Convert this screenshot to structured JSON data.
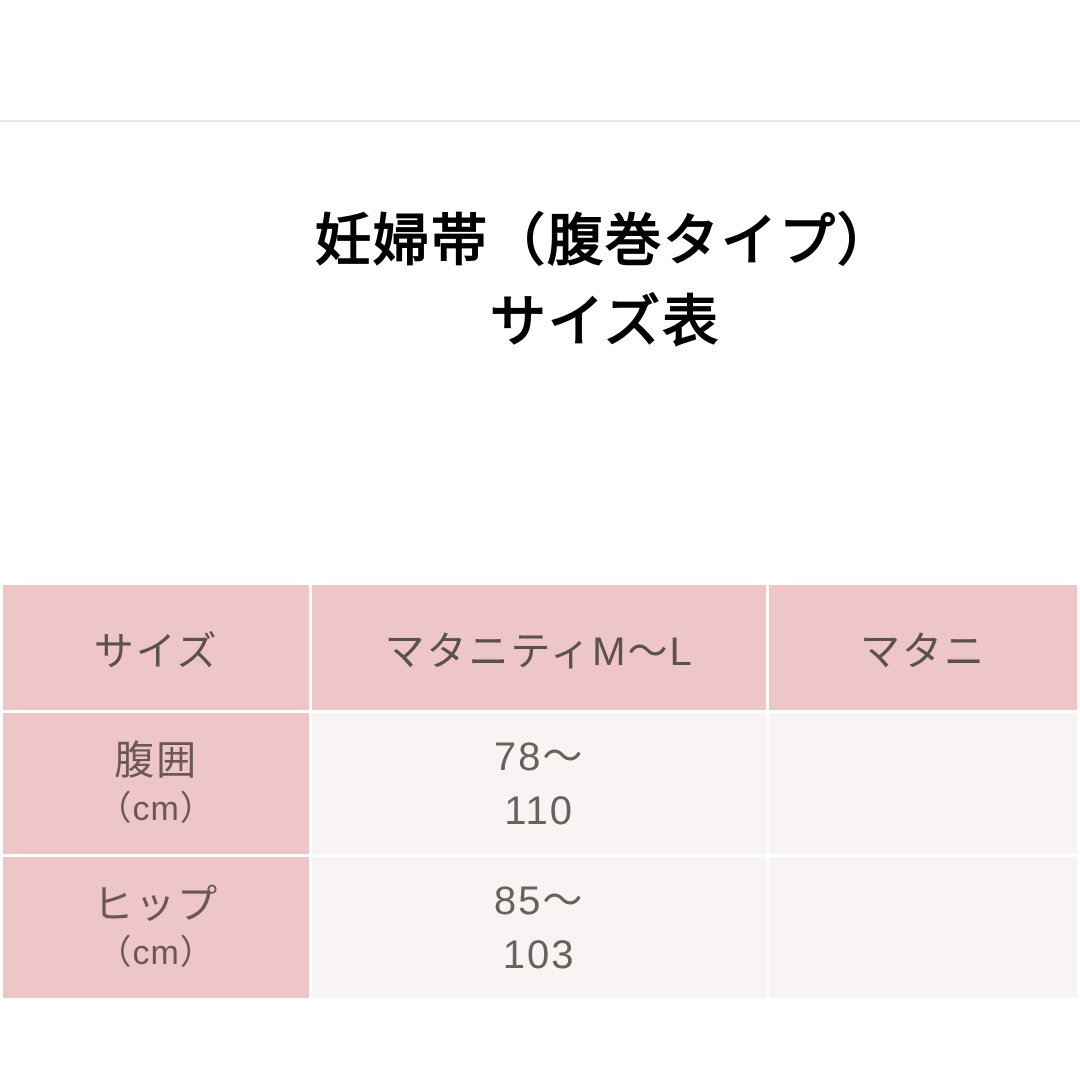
{
  "title": {
    "line1": "妊婦帯（腹巻タイプ）",
    "line2": "サイズ表"
  },
  "table": {
    "headers": [
      "サイズ",
      "マタニティM〜L",
      "マタニ"
    ],
    "rows": [
      {
        "label_main": "腹囲",
        "label_sub": "（cm）",
        "value_line1": "78〜",
        "value_line2": "110",
        "partial_value": ""
      },
      {
        "label_main": "ヒップ",
        "label_sub": "（cm）",
        "value_line1": "85〜",
        "value_line2": "103",
        "partial_value": ""
      }
    ],
    "colors": {
      "header_bg": "#eec6c8",
      "cell_bg": "#f8f4f3",
      "border": "#ffffff",
      "header_text": "#5a5150",
      "cell_text": "#6a605e"
    },
    "fontsize_header": 40,
    "fontsize_value": 40,
    "fontsize_sublabel": 34
  },
  "title_style": {
    "fontsize": 56,
    "fontweight": 700,
    "color": "#000000"
  },
  "background_color": "#ffffff",
  "divider_color": "#e8e8e8"
}
